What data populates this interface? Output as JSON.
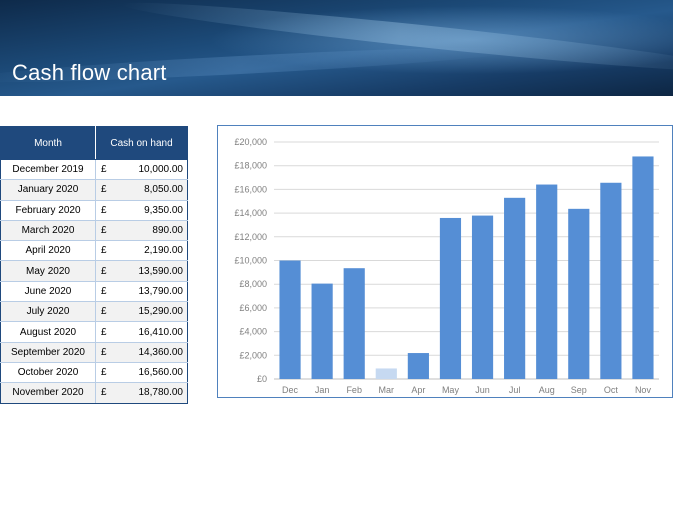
{
  "header": {
    "title": "Cash flow chart"
  },
  "table": {
    "col_month": "Month",
    "col_cash": "Cash on hand",
    "currency": "£",
    "rows": [
      {
        "month": "December 2019",
        "amount": "10,000.00"
      },
      {
        "month": "January 2020",
        "amount": "8,050.00"
      },
      {
        "month": "February 2020",
        "amount": "9,350.00"
      },
      {
        "month": "March 2020",
        "amount": "890.00"
      },
      {
        "month": "April 2020",
        "amount": "2,190.00"
      },
      {
        "month": "May 2020",
        "amount": "13,590.00"
      },
      {
        "month": "June 2020",
        "amount": "13,790.00"
      },
      {
        "month": "July 2020",
        "amount": "15,290.00"
      },
      {
        "month": "August 2020",
        "amount": "16,410.00"
      },
      {
        "month": "September 2020",
        "amount": "14,360.00"
      },
      {
        "month": "October 2020",
        "amount": "16,560.00"
      },
      {
        "month": "November 2020",
        "amount": "18,780.00"
      }
    ]
  },
  "chart_data": {
    "type": "bar",
    "categories": [
      "Dec",
      "Jan",
      "Feb",
      "Mar",
      "Apr",
      "May",
      "Jun",
      "Jul",
      "Aug",
      "Sep",
      "Oct",
      "Nov"
    ],
    "values": [
      10000,
      8050,
      9350,
      890,
      2190,
      13590,
      13790,
      15290,
      16410,
      14360,
      16560,
      18780
    ],
    "y_ticks": [
      "£0",
      "£2,000",
      "£4,000",
      "£6,000",
      "£8,000",
      "£10,000",
      "£12,000",
      "£14,000",
      "£16,000",
      "£18,000",
      "£20,000"
    ],
    "ylim": [
      0,
      20000
    ],
    "grid": true,
    "bar_color": "#558ed5",
    "low_bar_color": "#c6d9f1",
    "low_threshold": 1000,
    "title": "",
    "xlabel": "",
    "ylabel": ""
  },
  "colors": {
    "header_fill": "#1f497d",
    "table_border": "#b9cde5"
  }
}
